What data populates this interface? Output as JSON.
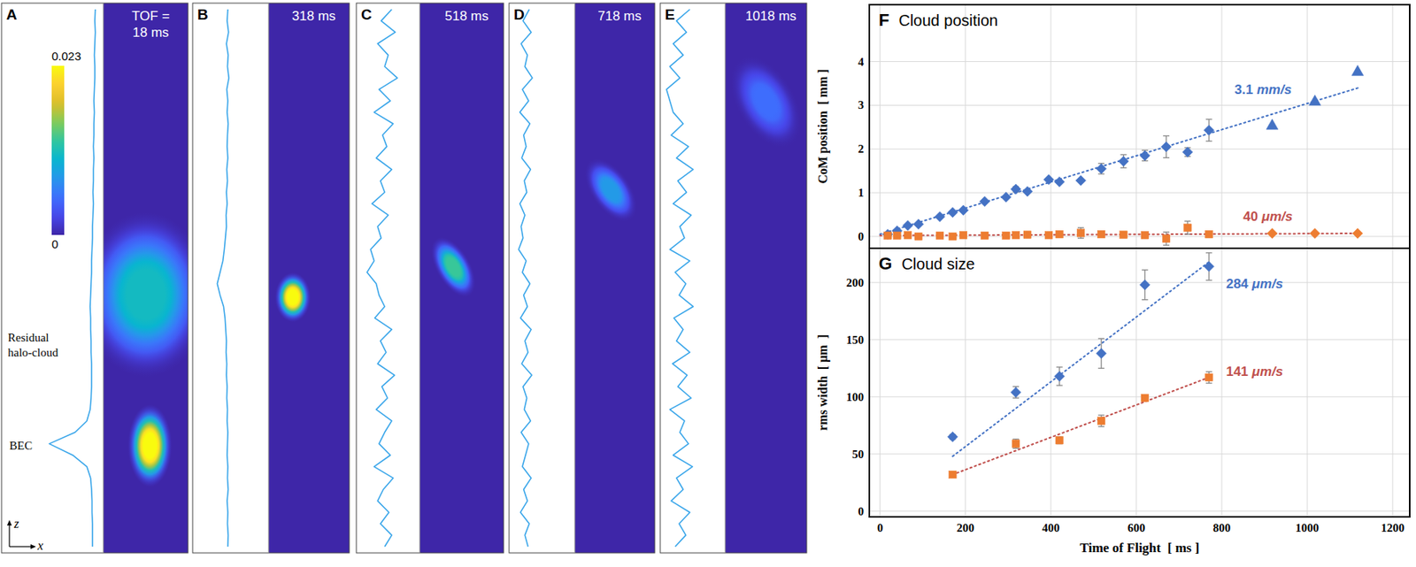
{
  "tof_prefix": "TOF =",
  "colorbar": {
    "range": [
      0,
      0.023
    ],
    "ticks": [
      0.023,
      0
    ]
  },
  "labels": {
    "halo": "Residual halo-cloud",
    "bec": "BEC",
    "axis_z": "z",
    "axis_x": "x"
  },
  "image_panels": [
    {
      "letter": "A",
      "tof_label": "18 ms",
      "cloud_peaks": [
        0.023,
        0.011
      ],
      "profile": [
        0.02,
        0.03,
        0.02,
        0.03,
        0.04,
        0.03,
        0.03,
        0.04,
        0.05,
        0.04,
        0.05,
        0.05,
        0.06,
        0.05,
        0.06,
        0.06,
        0.07,
        0.06,
        0.07,
        0.08,
        0.08,
        0.09,
        0.1,
        0.1,
        0.11,
        0.12,
        0.13,
        0.12,
        0.12,
        0.11,
        0.11,
        0.1,
        0.1,
        0.1,
        0.11,
        0.13,
        0.2,
        0.45,
        1.0,
        0.5,
        0.2,
        0.12,
        0.1,
        0.09,
        0.09,
        0.08,
        0.08,
        0.08
      ]
    },
    {
      "letter": "B",
      "tof_label": "318 ms",
      "cloud_peaks": [
        0.023
      ],
      "profile": [
        0.08,
        0.1,
        0.06,
        0.12,
        0.07,
        0.09,
        0.05,
        0.11,
        0.08,
        0.1,
        0.07,
        0.09,
        0.1,
        0.08,
        0.11,
        0.09,
        0.12,
        0.1,
        0.13,
        0.12,
        0.15,
        0.18,
        0.22,
        0.3,
        0.38,
        0.3,
        0.2,
        0.16,
        0.14,
        0.12,
        0.13,
        0.11,
        0.12,
        0.1,
        0.11,
        0.09,
        0.1,
        0.08,
        0.09,
        0.1,
        0.08,
        0.09,
        0.07,
        0.1,
        0.08,
        0.09,
        0.07,
        0.08
      ]
    },
    {
      "letter": "C",
      "tof_label": "518 ms",
      "cloud_peaks": [
        0.013
      ],
      "profile": [
        0.2,
        0.35,
        0.15,
        0.4,
        0.25,
        0.3,
        0.12,
        0.38,
        0.22,
        0.45,
        0.18,
        0.33,
        0.27,
        0.42,
        0.2,
        0.36,
        0.3,
        0.48,
        0.25,
        0.4,
        0.35,
        0.5,
        0.45,
        0.55,
        0.42,
        0.38,
        0.3,
        0.44,
        0.2,
        0.36,
        0.28,
        0.4,
        0.16,
        0.34,
        0.26,
        0.42,
        0.2,
        0.3,
        0.38,
        0.22,
        0.45,
        0.18,
        0.32,
        0.4,
        0.24,
        0.36,
        0.2,
        0.3
      ]
    },
    {
      "letter": "D",
      "tof_label": "718 ms",
      "cloud_peaks": [
        0.008
      ],
      "profile": [
        0.15,
        0.25,
        0.12,
        0.28,
        0.18,
        0.22,
        0.1,
        0.26,
        0.16,
        0.3,
        0.14,
        0.24,
        0.2,
        0.27,
        0.13,
        0.23,
        0.19,
        0.3,
        0.22,
        0.28,
        0.25,
        0.32,
        0.2,
        0.26,
        0.14,
        0.24,
        0.18,
        0.29,
        0.12,
        0.22,
        0.17,
        0.27,
        0.11,
        0.25,
        0.19,
        0.23,
        0.13,
        0.28,
        0.16,
        0.21,
        0.26,
        0.12,
        0.24,
        0.18,
        0.29,
        0.15,
        0.22,
        0.17
      ]
    },
    {
      "letter": "E",
      "tof_label": "1018 ms",
      "cloud_peaks": [
        0.005
      ],
      "profile": [
        0.2,
        0.4,
        0.25,
        0.45,
        0.3,
        0.5,
        0.35,
        0.55,
        0.5,
        0.45,
        0.3,
        0.48,
        0.22,
        0.4,
        0.15,
        0.38,
        0.25,
        0.45,
        0.18,
        0.35,
        0.28,
        0.5,
        0.2,
        0.42,
        0.26,
        0.36,
        0.15,
        0.44,
        0.3,
        0.4,
        0.2,
        0.46,
        0.24,
        0.38,
        0.18,
        0.5,
        0.28,
        0.35,
        0.22,
        0.45,
        0.16,
        0.4,
        0.3,
        0.48,
        0.2,
        0.36,
        0.26,
        0.42
      ]
    }
  ],
  "chart_data": [
    {
      "type": "scatter",
      "panel_label": "F",
      "title": "Cloud position",
      "y_label": "CoM position  [ mm ]",
      "xlim": [
        -25,
        1240
      ],
      "xticks": [
        0,
        200,
        400,
        600,
        800,
        1000,
        1200
      ],
      "ylim": [
        -0.27,
        5.3
      ],
      "yticks": [
        0,
        1,
        2,
        3,
        4
      ],
      "grid": true,
      "tick_labels": "y",
      "series": [
        {
          "color": "#4472c4",
          "marker": "diamond",
          "x": [
            18,
            40,
            65,
            90,
            140,
            170,
            195,
            245,
            295,
            318,
            345,
            395,
            420,
            470,
            518,
            570,
            620,
            670,
            720,
            770
          ],
          "values": [
            0.05,
            0.13,
            0.25,
            0.28,
            0.45,
            0.55,
            0.6,
            0.8,
            0.9,
            1.08,
            1.03,
            1.3,
            1.25,
            1.28,
            1.55,
            1.72,
            1.85,
            2.05,
            1.93,
            2.43
          ],
          "errors": [
            null,
            null,
            null,
            null,
            null,
            null,
            null,
            null,
            null,
            0.06,
            null,
            null,
            null,
            null,
            0.12,
            0.15,
            0.12,
            0.25,
            0.1,
            0.25
          ]
        },
        {
          "color": "#4472c4",
          "marker": "triangle",
          "x": [
            918,
            1018,
            1118
          ],
          "values": [
            2.55,
            3.1,
            3.78
          ]
        },
        {
          "color": "#ed7d31",
          "marker": "square",
          "x": [
            18,
            40,
            65,
            90,
            140,
            170,
            195,
            245,
            295,
            318,
            345,
            395,
            420,
            470,
            518,
            570,
            620,
            670,
            720,
            770
          ],
          "values": [
            0.02,
            0.02,
            0.03,
            0.0,
            0.02,
            0.0,
            0.03,
            0.02,
            0.02,
            0.03,
            0.04,
            0.03,
            0.05,
            0.08,
            0.05,
            0.04,
            0.03,
            -0.05,
            0.2,
            0.05
          ],
          "errors": [
            null,
            null,
            null,
            null,
            null,
            null,
            null,
            null,
            null,
            null,
            null,
            null,
            null,
            0.12,
            null,
            null,
            null,
            0.15,
            0.15,
            null
          ]
        },
        {
          "color": "#ed7d31",
          "marker": "diamond",
          "x": [
            918,
            1018,
            1118
          ],
          "values": [
            0.07,
            0.07,
            0.07
          ]
        },
        {
          "type": "line",
          "line_style": "dotted",
          "color": "#4472c4",
          "label": "3.1 mm/s",
          "x": [
            0,
            1120
          ],
          "values": [
            0.05,
            3.4
          ]
        },
        {
          "type": "line",
          "line_style": "dotted",
          "color": "#c0504d",
          "label": "40 μm/s",
          "x": [
            0,
            1120
          ],
          "values": [
            0.02,
            0.07
          ]
        }
      ]
    },
    {
      "type": "scatter",
      "panel_label": "G",
      "title": "Cloud size",
      "y_label": "rms width  [ μm  ]",
      "x_label": "Time of Flight  [ ms ]",
      "xlim": [
        -25,
        1240
      ],
      "xticks": [
        0,
        200,
        400,
        600,
        800,
        1000,
        1200
      ],
      "ylim": [
        -5,
        230
      ],
      "yticks": [
        0,
        50,
        100,
        150,
        200
      ],
      "grid": true,
      "series": [
        {
          "color": "#4472c4",
          "marker": "diamond",
          "x": [
            170,
            318,
            420,
            518,
            620,
            770
          ],
          "values": [
            65,
            104,
            118,
            138,
            198,
            214
          ],
          "errors": [
            2,
            5,
            8,
            13,
            13,
            12
          ]
        },
        {
          "color": "#ed7d31",
          "marker": "square",
          "x": [
            170,
            318,
            420,
            518,
            620,
            770
          ],
          "values": [
            32,
            59,
            62,
            79,
            99,
            117
          ],
          "errors": [
            2,
            4,
            3,
            5,
            2,
            5
          ]
        },
        {
          "type": "line",
          "line_style": "dotted",
          "color": "#4472c4",
          "label": "284 μm/s",
          "x": [
            170,
            770
          ],
          "values": [
            48,
            218
          ]
        },
        {
          "type": "line",
          "line_style": "dotted",
          "color": "#c0504d",
          "label": "141 μm/s",
          "x": [
            170,
            770
          ],
          "values": [
            32,
            117
          ]
        }
      ]
    }
  ]
}
